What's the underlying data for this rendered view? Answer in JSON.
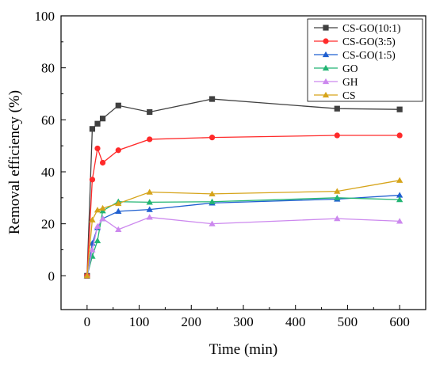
{
  "chart_data": {
    "type": "line",
    "xlabel": "Time (min)",
    "ylabel": "Removal efficiency (%)",
    "xlim": [
      -50,
      650
    ],
    "ylim": [
      -13,
      100
    ],
    "xticks": [
      0,
      100,
      200,
      300,
      400,
      500,
      600
    ],
    "yticks": [
      0,
      20,
      40,
      60,
      80,
      100
    ],
    "x": [
      0,
      10,
      20,
      30,
      60,
      120,
      240,
      480,
      600
    ],
    "legend_position": "top-right",
    "grid": false,
    "series": [
      {
        "name": "CS-GO(10:1)",
        "color": "#404040",
        "marker": "square",
        "values": [
          0,
          56.5,
          58.5,
          60.5,
          65.5,
          63,
          68,
          64.3,
          64
        ]
      },
      {
        "name": "CS-GO(3:5)",
        "color": "#ff2a2a",
        "marker": "circle",
        "values": [
          0,
          37,
          49,
          43.5,
          48.3,
          52.5,
          53.2,
          54,
          54
        ]
      },
      {
        "name": "CS-GO(1:5)",
        "color": "#1f5fd0",
        "marker": "triangle-up",
        "values": [
          0,
          12.5,
          18.5,
          22,
          24.8,
          25.5,
          28,
          29.5,
          31
        ]
      },
      {
        "name": "GO",
        "color": "#22b573",
        "marker": "triangle-up",
        "values": [
          0,
          7.5,
          13.5,
          25,
          28.5,
          28.3,
          28.5,
          30,
          29.3
        ]
      },
      {
        "name": "GH",
        "color": "#cc88ee",
        "marker": "triangle-up",
        "values": [
          0,
          10,
          19,
          22,
          17.8,
          22.5,
          20,
          22,
          21
        ]
      },
      {
        "name": "CS",
        "color": "#d6a41a",
        "marker": "triangle-up",
        "values": [
          0,
          21.5,
          25.3,
          26,
          27.8,
          32.2,
          31.5,
          32.5,
          36.7
        ]
      }
    ]
  }
}
